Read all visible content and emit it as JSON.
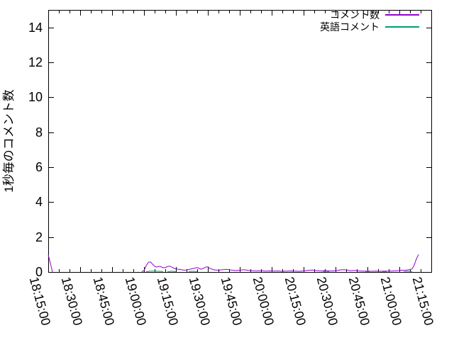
{
  "chart_data": {
    "type": "line",
    "title": "",
    "xlabel": "",
    "ylabel": "1秒毎のコメント数",
    "grid": false,
    "legend_position": "top-right",
    "background_color": "#ffffff",
    "axis_color": "#000000",
    "x_axis": {
      "unit": "minutes since 18:15:00",
      "xlim_minutes": [
        0,
        180
      ],
      "tick_minutes": [
        0,
        15,
        30,
        45,
        60,
        75,
        90,
        105,
        120,
        135,
        150,
        165,
        180
      ],
      "tick_labels": [
        "18:15:00",
        "18:30:00",
        "18:45:00",
        "19:00:00",
        "19:15:00",
        "19:30:00",
        "19:45:00",
        "20:00:00",
        "20:15:00",
        "20:30:00",
        "20:45:00",
        "21:00:00",
        "21:15:00"
      ],
      "minor_tick_interval_minutes": 5,
      "label_rotation_deg": 75
    },
    "y_axis": {
      "ylim": [
        0,
        15
      ],
      "tick_values": [
        0,
        2,
        4,
        6,
        8,
        10,
        12,
        14
      ]
    },
    "series": [
      {
        "name": "コメント数",
        "color": "#9400d3",
        "segments": [
          [
            [
              0,
              1.0
            ],
            [
              2,
              0.0
            ]
          ],
          [
            [
              44,
              0.02
            ],
            [
              45,
              0.08
            ],
            [
              46,
              0.35
            ],
            [
              47,
              0.55
            ],
            [
              48,
              0.58
            ],
            [
              49,
              0.45
            ],
            [
              50,
              0.32
            ],
            [
              51,
              0.28
            ],
            [
              52,
              0.33
            ],
            [
              53,
              0.3
            ],
            [
              54,
              0.24
            ],
            [
              55,
              0.26
            ],
            [
              56,
              0.31
            ],
            [
              57,
              0.34
            ],
            [
              58,
              0.28
            ],
            [
              59,
              0.22
            ],
            [
              60,
              0.18
            ],
            [
              62,
              0.14
            ],
            [
              64,
              0.1
            ],
            [
              66,
              0.14
            ],
            [
              68,
              0.2
            ],
            [
              70,
              0.26
            ],
            [
              71,
              0.2
            ],
            [
              72,
              0.16
            ],
            [
              74,
              0.28
            ],
            [
              75,
              0.3
            ],
            [
              76,
              0.2
            ],
            [
              78,
              0.12
            ],
            [
              80,
              0.1
            ],
            [
              82,
              0.13
            ],
            [
              84,
              0.15
            ],
            [
              86,
              0.11
            ],
            [
              88,
              0.08
            ],
            [
              90,
              0.1
            ],
            [
              92,
              0.13
            ],
            [
              94,
              0.09
            ],
            [
              96,
              0.07
            ],
            [
              98,
              0.06
            ],
            [
              100,
              0.07
            ],
            [
              102,
              0.05
            ],
            [
              104,
              0.06
            ],
            [
              106,
              0.05
            ],
            [
              108,
              0.06
            ],
            [
              110,
              0.04
            ],
            [
              112,
              0.05
            ],
            [
              114,
              0.06
            ],
            [
              116,
              0.05
            ],
            [
              118,
              0.04
            ],
            [
              120,
              0.06
            ],
            [
              122,
              0.09
            ],
            [
              124,
              0.11
            ],
            [
              126,
              0.08
            ],
            [
              128,
              0.06
            ],
            [
              130,
              0.08
            ],
            [
              132,
              0.06
            ],
            [
              134,
              0.06
            ],
            [
              136,
              0.09
            ],
            [
              138,
              0.13
            ],
            [
              140,
              0.12
            ],
            [
              142,
              0.07
            ],
            [
              144,
              0.09
            ],
            [
              146,
              0.06
            ],
            [
              148,
              0.05
            ],
            [
              150,
              0.05
            ],
            [
              152,
              0.04
            ],
            [
              154,
              0.05
            ],
            [
              156,
              0.04
            ],
            [
              158,
              0.05
            ],
            [
              160,
              0.05
            ],
            [
              162,
              0.06
            ],
            [
              164,
              0.07
            ],
            [
              166,
              0.1
            ],
            [
              168,
              0.1
            ],
            [
              170,
              0.14
            ],
            [
              171,
              0.18
            ],
            [
              172,
              0.4
            ],
            [
              173,
              0.75
            ],
            [
              174,
              1.0
            ]
          ]
        ]
      },
      {
        "name": "英語コメント",
        "color": "#009e73",
        "segments": [
          [
            [
              46,
              0.01
            ],
            [
              48,
              0.05
            ],
            [
              50,
              0.05
            ],
            [
              53,
              0.04
            ],
            [
              54,
              0.01
            ]
          ],
          [
            [
              56,
              0.01
            ],
            [
              57,
              0.04
            ],
            [
              59,
              0.04
            ],
            [
              60,
              0.01
            ]
          ],
          [
            [
              66,
              0.01
            ],
            [
              67,
              0.04
            ],
            [
              69,
              0.04
            ],
            [
              70,
              0.01
            ]
          ],
          [
            [
              129,
              0.01
            ],
            [
              130,
              0.04
            ],
            [
              131,
              0.04
            ],
            [
              132,
              0.01
            ]
          ],
          [
            [
              149,
              0.01
            ],
            [
              150,
              0.04
            ],
            [
              151,
              0.01
            ]
          ],
          [
            [
              157,
              0.01
            ],
            [
              158,
              0.03
            ],
            [
              159,
              0.01
            ]
          ],
          [
            [
              167,
              0.01
            ],
            [
              168,
              0.04
            ],
            [
              170,
              0.04
            ],
            [
              171,
              0.01
            ]
          ]
        ]
      }
    ]
  }
}
